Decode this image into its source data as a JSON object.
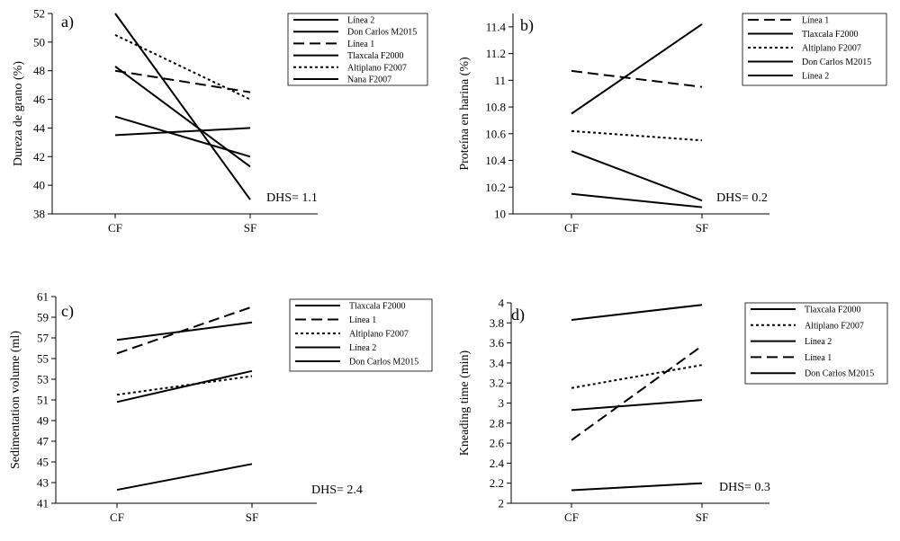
{
  "chart_data": [
    {
      "type": "line",
      "panel_label": "a)",
      "title": "",
      "xlabel": "",
      "ylabel": "Dureza de grano (%)",
      "categories": [
        "CF",
        "SF"
      ],
      "ylim": [
        38,
        52
      ],
      "yticks": [
        38,
        40,
        42,
        44,
        46,
        48,
        50,
        52
      ],
      "ytick_labels": [
        "38",
        "40",
        "42",
        "44",
        "46",
        "48",
        "50",
        "52"
      ],
      "annotation": "DHS= 1.1",
      "series": [
        {
          "name": "Línea 2",
          "style": "solid",
          "values": [
            52.0,
            39.0
          ]
        },
        {
          "name": "Don Carlos M2015",
          "style": "solid",
          "values": [
            48.3,
            41.3
          ]
        },
        {
          "name": "Línea 1",
          "style": "dashed",
          "values": [
            48.0,
            46.5
          ]
        },
        {
          "name": "Tlaxcala F2000",
          "style": "solid",
          "values": [
            43.5,
            44.0
          ]
        },
        {
          "name": "Altiplano F2007",
          "style": "dotted",
          "values": [
            50.5,
            46.0
          ]
        },
        {
          "name": "Nana F2007",
          "style": "solid",
          "values": [
            44.8,
            42.0
          ]
        }
      ]
    },
    {
      "type": "line",
      "panel_label": "b)",
      "title": "",
      "xlabel": "",
      "ylabel": "Proteína en harina (%)",
      "categories": [
        "CF",
        "SF"
      ],
      "ylim": [
        10,
        11.5
      ],
      "yticks": [
        10,
        10.2,
        10.4,
        10.6,
        10.8,
        11,
        11.2,
        11.4
      ],
      "ytick_labels": [
        "10",
        "10.2",
        "10.4",
        "10.6",
        "10.8",
        "11",
        "11.2",
        "11.4"
      ],
      "annotation": "DHS= 0.2",
      "series": [
        {
          "name": "Línea 1",
          "style": "dashed",
          "values": [
            11.07,
            10.95
          ]
        },
        {
          "name": "Tlaxcala F2000",
          "style": "solid",
          "values": [
            10.75,
            11.42
          ]
        },
        {
          "name": "Altiplano F2007",
          "style": "dotted",
          "values": [
            10.62,
            10.55
          ]
        },
        {
          "name": "Don Carlos M2015",
          "style": "solid",
          "values": [
            10.47,
            10.1
          ]
        },
        {
          "name": "Línea 2",
          "style": "solid",
          "values": [
            10.15,
            10.05
          ]
        }
      ]
    },
    {
      "type": "line",
      "panel_label": "c)",
      "title": "",
      "xlabel": "",
      "ylabel": "Sedimentation volume (ml)",
      "categories": [
        "CF",
        "SF"
      ],
      "ylim": [
        41,
        61
      ],
      "yticks": [
        41,
        43,
        45,
        47,
        49,
        51,
        53,
        55,
        57,
        59,
        61
      ],
      "ytick_labels": [
        "41",
        "43",
        "45",
        "47",
        "49",
        "51",
        "53",
        "55",
        "57",
        "59",
        "61"
      ],
      "annotation": "DHS= 2.4",
      "series": [
        {
          "name": "Tlaxcala F2000",
          "style": "solid",
          "values": [
            56.8,
            58.5
          ]
        },
        {
          "name": "Línea 1",
          "style": "dashed",
          "values": [
            55.5,
            60.0
          ]
        },
        {
          "name": "Altiplano F2007",
          "style": "dotted",
          "values": [
            51.5,
            53.3
          ]
        },
        {
          "name": "Línea 2",
          "style": "solid",
          "values": [
            50.8,
            53.8
          ]
        },
        {
          "name": "Don Carlos M2015",
          "style": "solid",
          "values": [
            42.3,
            44.8
          ]
        }
      ]
    },
    {
      "type": "line",
      "panel_label": "d)",
      "title": "",
      "xlabel": "",
      "ylabel": "Kneading time (min)",
      "categories": [
        "CF",
        "SF"
      ],
      "ylim": [
        2,
        4
      ],
      "yticks": [
        2,
        2.2,
        2.4,
        2.6,
        2.8,
        3,
        3.2,
        3.4,
        3.6,
        3.8,
        4
      ],
      "ytick_labels": [
        "2",
        "2.2",
        "2.4",
        "2.6",
        "2.8",
        "3",
        "3.2",
        "3.4",
        "3.6",
        "3.8",
        "4"
      ],
      "annotation": "DHS= 0.3",
      "series": [
        {
          "name": "Tlaxcala F2000",
          "style": "solid",
          "values": [
            3.83,
            3.98
          ]
        },
        {
          "name": "Altiplano F2007",
          "style": "dotted",
          "values": [
            3.15,
            3.38
          ]
        },
        {
          "name": "Línea 2",
          "style": "solid",
          "values": [
            2.93,
            3.03
          ]
        },
        {
          "name": "Línea 1",
          "style": "dashed",
          "values": [
            2.63,
            3.57
          ]
        },
        {
          "name": "Don Carlos M2015",
          "style": "solid",
          "values": [
            2.13,
            2.2
          ]
        }
      ]
    }
  ]
}
